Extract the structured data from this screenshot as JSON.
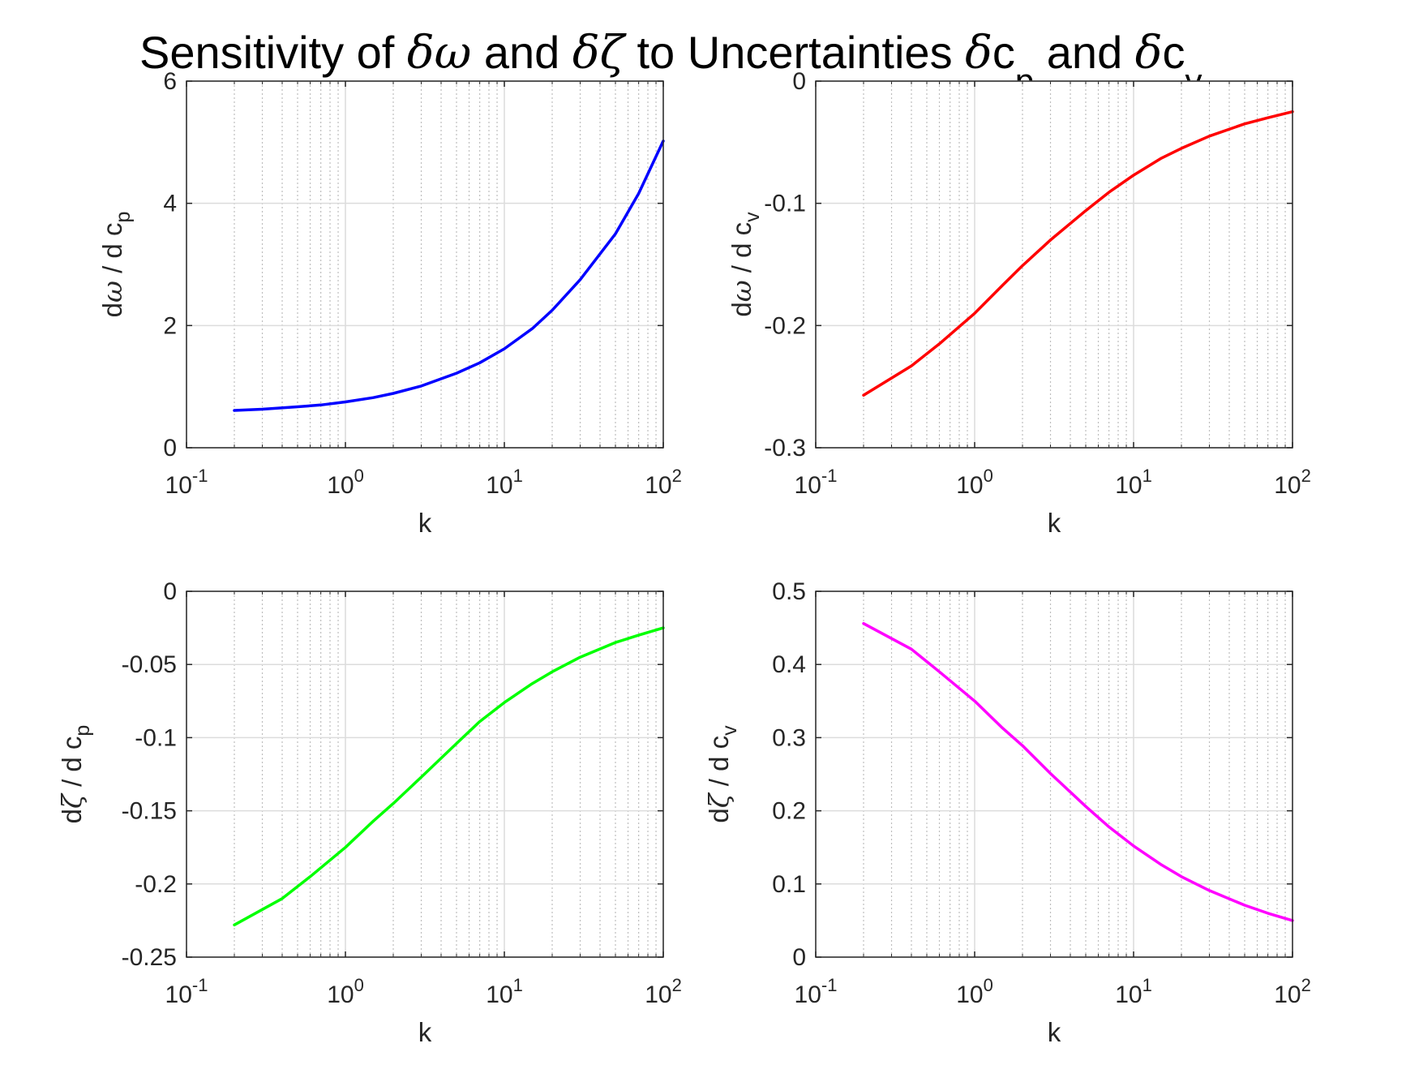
{
  "figure": {
    "title_parts": {
      "t1": "Sensitivity of ",
      "t2": "δω",
      "t3": " and ",
      "t4": "δζ",
      "t5": " to Uncertainties ",
      "t6": "δ",
      "t7": "c",
      "t8": "p",
      "t9": " and ",
      "t10": "δ",
      "t11": "c",
      "t12": "v"
    }
  },
  "chart_data": [
    {
      "type": "line",
      "xscale": "log",
      "xlim": [
        0.1,
        100
      ],
      "ylim": [
        0,
        6
      ],
      "grid": true,
      "xlabel": "k",
      "ylabel_parts": [
        "d",
        "ω",
        " / d c",
        "p"
      ],
      "yticks": [
        "0",
        "2",
        "4",
        "6"
      ],
      "ytick_values": [
        0,
        2,
        4,
        6
      ],
      "xticks": [
        {
          "base": "10",
          "exp": "-1",
          "value": 0.1
        },
        {
          "base": "10",
          "exp": "0",
          "value": 1
        },
        {
          "base": "10",
          "exp": "1",
          "value": 10
        },
        {
          "base": "10",
          "exp": "2",
          "value": 100
        }
      ],
      "series": [
        {
          "color": "#0000ff",
          "x": [
            0.2,
            0.3,
            0.5,
            0.7,
            1,
            1.5,
            2,
            3,
            5,
            7,
            10,
            15,
            20,
            30,
            50,
            70,
            100
          ],
          "y": [
            0.61,
            0.63,
            0.67,
            0.7,
            0.75,
            0.82,
            0.89,
            1.01,
            1.22,
            1.39,
            1.62,
            1.95,
            2.25,
            2.75,
            3.5,
            4.16,
            5.02
          ]
        }
      ]
    },
    {
      "type": "line",
      "xscale": "log",
      "xlim": [
        0.1,
        100
      ],
      "ylim": [
        -0.3,
        0
      ],
      "grid": true,
      "xlabel": "k",
      "ylabel_parts": [
        "d",
        "ω",
        " / d c",
        "v"
      ],
      "yticks": [
        "-0.3",
        "-0.2",
        "-0.1",
        "0"
      ],
      "ytick_values": [
        -0.3,
        -0.2,
        -0.1,
        0
      ],
      "xticks": [
        {
          "base": "10",
          "exp": "-1",
          "value": 0.1
        },
        {
          "base": "10",
          "exp": "0",
          "value": 1
        },
        {
          "base": "10",
          "exp": "1",
          "value": 10
        },
        {
          "base": "10",
          "exp": "2",
          "value": 100
        }
      ],
      "series": [
        {
          "color": "#ff0000",
          "x": [
            0.2,
            0.4,
            0.6,
            1,
            1.5,
            2,
            3,
            5,
            7,
            10,
            15,
            20,
            30,
            50,
            70,
            100
          ],
          "y": [
            -0.257,
            -0.233,
            -0.215,
            -0.19,
            -0.167,
            -0.151,
            -0.13,
            -0.106,
            -0.091,
            -0.077,
            -0.063,
            -0.055,
            -0.045,
            -0.035,
            -0.03,
            -0.025
          ]
        }
      ]
    },
    {
      "type": "line",
      "xscale": "log",
      "xlim": [
        0.1,
        100
      ],
      "ylim": [
        -0.25,
        0
      ],
      "grid": true,
      "xlabel": "k",
      "ylabel_parts": [
        "d",
        "ζ",
        " / d c",
        "p"
      ],
      "yticks": [
        "-0.25",
        "-0.2",
        "-0.15",
        "-0.1",
        "-0.05",
        "0"
      ],
      "ytick_values": [
        -0.25,
        -0.2,
        -0.15,
        -0.1,
        -0.05,
        0
      ],
      "xticks": [
        {
          "base": "10",
          "exp": "-1",
          "value": 0.1
        },
        {
          "base": "10",
          "exp": "0",
          "value": 1
        },
        {
          "base": "10",
          "exp": "1",
          "value": 10
        },
        {
          "base": "10",
          "exp": "2",
          "value": 100
        }
      ],
      "series": [
        {
          "color": "#00ff00",
          "x": [
            0.2,
            0.4,
            0.6,
            1,
            1.5,
            2,
            3,
            5,
            7,
            10,
            15,
            20,
            30,
            50,
            70,
            100
          ],
          "y": [
            -0.228,
            -0.21,
            -0.195,
            -0.175,
            -0.157,
            -0.145,
            -0.127,
            -0.104,
            -0.089,
            -0.076,
            -0.063,
            -0.055,
            -0.045,
            -0.035,
            -0.03,
            -0.025
          ]
        }
      ]
    },
    {
      "type": "line",
      "xscale": "log",
      "xlim": [
        0.1,
        100
      ],
      "ylim": [
        0,
        0.5
      ],
      "grid": true,
      "xlabel": "k",
      "ylabel_parts": [
        "d",
        "ζ",
        " / d c",
        "v"
      ],
      "yticks": [
        "0",
        "0.1",
        "0.2",
        "0.3",
        "0.4",
        "0.5"
      ],
      "ytick_values": [
        0,
        0.1,
        0.2,
        0.3,
        0.4,
        0.5
      ],
      "xticks": [
        {
          "base": "10",
          "exp": "-1",
          "value": 0.1
        },
        {
          "base": "10",
          "exp": "0",
          "value": 1
        },
        {
          "base": "10",
          "exp": "1",
          "value": 10
        },
        {
          "base": "10",
          "exp": "2",
          "value": 100
        }
      ],
      "series": [
        {
          "color": "#ff00ff",
          "x": [
            0.2,
            0.4,
            0.6,
            1,
            1.5,
            2,
            3,
            5,
            7,
            10,
            15,
            20,
            30,
            50,
            70,
            100
          ],
          "y": [
            0.456,
            0.421,
            0.39,
            0.35,
            0.313,
            0.289,
            0.251,
            0.206,
            0.178,
            0.152,
            0.126,
            0.11,
            0.091,
            0.071,
            0.06,
            0.05
          ]
        }
      ]
    }
  ]
}
